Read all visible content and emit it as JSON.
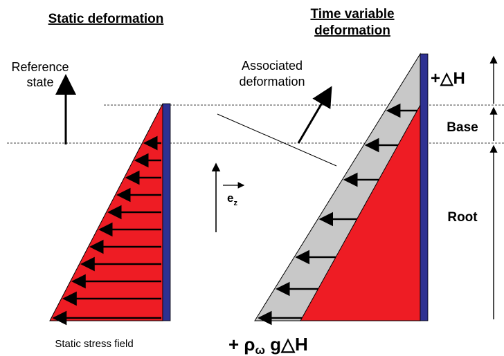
{
  "headings": {
    "static": "Static deformation",
    "variable_line1": "Time variable",
    "variable_line2": "deformation"
  },
  "labels": {
    "reference_line1": "Reference",
    "reference_line2": "state",
    "associated_line1": "Associated",
    "associated_line2": "deformation",
    "ez_base": "e",
    "ez_sub": "z",
    "delta_h": "+△H",
    "base": "Base",
    "root": "Root",
    "static_stress": "Static stress field",
    "pressure_plus": "+ ",
    "pressure_rho": "ρ",
    "pressure_sub": "ω",
    "pressure_rest": " g△H"
  },
  "colors": {
    "stress_fill": "#ee1c24",
    "deformation_fill": "#c8c8c8",
    "wall": "#2e3192",
    "arrow": "#000000"
  }
}
